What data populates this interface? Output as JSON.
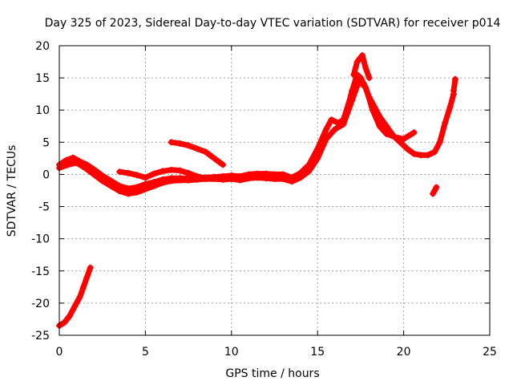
{
  "chart_data": {
    "type": "scatter",
    "title": "Day 325 of 2023, Sidereal Day-to-day VTEC variation (SDTVAR) for receiver p014",
    "xlabel": "GPS time / hours",
    "ylabel": "SDTVAR / TECUs",
    "xlim": [
      0,
      25
    ],
    "ylim": [
      -25,
      20
    ],
    "xticks": [
      0,
      5,
      10,
      15,
      20,
      25
    ],
    "yticks": [
      -25,
      -20,
      -15,
      -10,
      -5,
      0,
      5,
      10,
      15,
      20
    ],
    "grid": true,
    "marker": "plus",
    "color": "#ff0000",
    "series": [
      {
        "name": "main-track-upper",
        "points": [
          [
            0,
            1.5
          ],
          [
            0.4,
            2.2
          ],
          [
            0.8,
            2.6
          ],
          [
            1.2,
            2.0
          ],
          [
            1.6,
            1.5
          ],
          [
            2.0,
            0.8
          ],
          [
            2.5,
            -0.2
          ],
          [
            3.0,
            -1.0
          ],
          [
            3.5,
            -1.8
          ],
          [
            4.0,
            -2.2
          ],
          [
            4.5,
            -2.0
          ],
          [
            5.0,
            -1.5
          ],
          [
            5.5,
            -1.2
          ],
          [
            6.0,
            -0.8
          ],
          [
            6.5,
            -0.6
          ],
          [
            7.0,
            -0.6
          ],
          [
            7.5,
            -0.6
          ],
          [
            8.0,
            -0.6
          ],
          [
            8.5,
            -0.5
          ],
          [
            9.0,
            -0.4
          ],
          [
            9.5,
            -0.3
          ],
          [
            10.0,
            -0.2
          ],
          [
            10.5,
            -0.3
          ],
          [
            11.0,
            0.0
          ],
          [
            11.5,
            0.1
          ],
          [
            12.0,
            0.1
          ],
          [
            12.5,
            0.0
          ],
          [
            13.0,
            0.0
          ],
          [
            13.5,
            -0.5
          ],
          [
            14.0,
            0.2
          ],
          [
            14.5,
            1.5
          ],
          [
            15.0,
            4.0
          ],
          [
            15.5,
            7.0
          ],
          [
            15.8,
            8.5
          ],
          [
            16.2,
            8.0
          ],
          [
            16.5,
            8.5
          ],
          [
            16.8,
            11.0
          ],
          [
            17.0,
            13.0
          ],
          [
            17.3,
            15.5
          ],
          [
            17.5,
            15.0
          ],
          [
            17.7,
            14.0
          ],
          [
            18.0,
            12.0
          ],
          [
            18.3,
            10.5
          ],
          [
            18.6,
            9.0
          ],
          [
            19.0,
            7.5
          ],
          [
            19.4,
            6.0
          ],
          [
            19.8,
            5.0
          ],
          [
            20.2,
            4.0
          ],
          [
            20.6,
            3.2
          ],
          [
            21.0,
            3.0
          ],
          [
            21.4,
            3.0
          ],
          [
            21.8,
            3.5
          ],
          [
            22.1,
            5.0
          ],
          [
            22.4,
            8.0
          ],
          [
            22.7,
            10.5
          ],
          [
            22.9,
            12.5
          ]
        ]
      },
      {
        "name": "main-track-lower",
        "points": [
          [
            0,
            1.0
          ],
          [
            0.5,
            1.5
          ],
          [
            1.0,
            1.8
          ],
          [
            1.5,
            1.0
          ],
          [
            2.0,
            0.0
          ],
          [
            2.5,
            -1.0
          ],
          [
            3.0,
            -1.8
          ],
          [
            3.5,
            -2.6
          ],
          [
            4.0,
            -3.0
          ],
          [
            4.5,
            -2.8
          ],
          [
            5.0,
            -2.3
          ],
          [
            5.5,
            -1.8
          ],
          [
            6.0,
            -1.3
          ],
          [
            6.5,
            -1.0
          ],
          [
            7.0,
            -0.9
          ],
          [
            7.5,
            -0.9
          ],
          [
            8.0,
            -0.8
          ],
          [
            8.5,
            -0.7
          ],
          [
            9.0,
            -0.7
          ],
          [
            9.5,
            -0.8
          ],
          [
            10.0,
            -0.7
          ],
          [
            10.5,
            -0.9
          ],
          [
            11.0,
            -0.6
          ],
          [
            11.5,
            -0.5
          ],
          [
            12.0,
            -0.6
          ],
          [
            12.5,
            -0.7
          ],
          [
            13.0,
            -0.7
          ],
          [
            13.5,
            -1.1
          ],
          [
            14.0,
            -0.5
          ],
          [
            14.5,
            0.5
          ],
          [
            15.0,
            2.5
          ],
          [
            15.5,
            5.5
          ],
          [
            16.0,
            7.0
          ],
          [
            16.5,
            7.8
          ],
          [
            17.0,
            11.5
          ],
          [
            17.4,
            14.5
          ],
          [
            17.8,
            13.5
          ],
          [
            18.2,
            10.0
          ],
          [
            18.6,
            7.5
          ],
          [
            19.0,
            6.3
          ],
          [
            19.5,
            5.8
          ],
          [
            20.0,
            5.5
          ],
          [
            20.3,
            6.0
          ],
          [
            20.6,
            6.5
          ]
        ]
      },
      {
        "name": "peak-spike",
        "points": [
          [
            17.1,
            15.5
          ],
          [
            17.3,
            17.5
          ],
          [
            17.6,
            18.5
          ],
          [
            17.8,
            16.5
          ],
          [
            18.0,
            15.0
          ]
        ]
      },
      {
        "name": "arc-segment",
        "points": [
          [
            3.5,
            0.4
          ],
          [
            4.0,
            0.2
          ],
          [
            4.5,
            -0.1
          ],
          [
            5.0,
            -0.5
          ],
          [
            5.5,
            0.1
          ],
          [
            6.0,
            0.5
          ],
          [
            6.5,
            0.7
          ],
          [
            7.0,
            0.6
          ],
          [
            7.5,
            0.2
          ],
          [
            8.0,
            -0.3
          ],
          [
            8.5,
            -0.6
          ]
        ]
      },
      {
        "name": "upper-arc",
        "points": [
          [
            6.5,
            5.0
          ],
          [
            7.0,
            4.8
          ],
          [
            7.5,
            4.5
          ],
          [
            8.0,
            4.0
          ],
          [
            8.5,
            3.5
          ],
          [
            9.0,
            2.5
          ],
          [
            9.5,
            1.5
          ]
        ]
      },
      {
        "name": "early-descent",
        "points": [
          [
            0,
            -23.5
          ],
          [
            0.3,
            -23.0
          ],
          [
            0.6,
            -22.0
          ],
          [
            0.9,
            -20.5
          ],
          [
            1.2,
            -19.0
          ],
          [
            1.4,
            -17.5
          ],
          [
            1.6,
            -16.0
          ],
          [
            1.8,
            -14.5
          ]
        ]
      },
      {
        "name": "late-blip",
        "points": [
          [
            21.7,
            -3.0
          ],
          [
            21.8,
            -2.5
          ],
          [
            21.9,
            -2.0
          ]
        ]
      },
      {
        "name": "late-tail",
        "points": [
          [
            22.9,
            13.0
          ],
          [
            23.0,
            14.8
          ]
        ]
      }
    ]
  }
}
